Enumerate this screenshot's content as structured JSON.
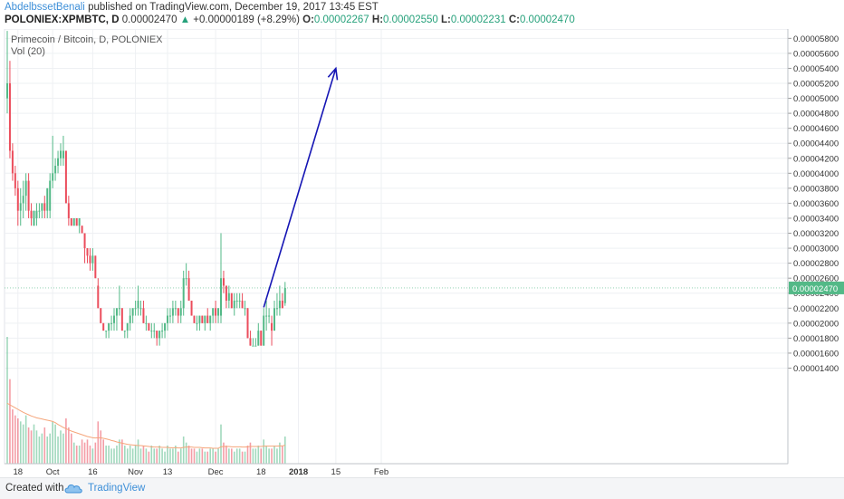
{
  "header": {
    "author": "AbdelbssetBenali",
    "published_text": "published on TradingView.com, December 19, 2017 13:45 EST",
    "symbol": "POLONIEX:XPMBTC, D",
    "last_value": "0.00002470",
    "arrow": "▲",
    "change": "+0.00000189 (+8.29%)",
    "o_label": "O:",
    "o_value": "0.00002267",
    "h_label": "H:",
    "h_value": "0.00002550",
    "l_label": "L:",
    "l_value": "0.00002231",
    "c_label": "C:",
    "c_value": "0.00002470"
  },
  "overlay": {
    "title": "Primecoin / Bitcoin, D, POLONIEX",
    "volume_label": "Vol (20)"
  },
  "footer": {
    "created_with": "Created with",
    "brand": "TradingView",
    "logo_icon": "tradingview-cloud-icon"
  },
  "colors": {
    "up": "#53b987",
    "down": "#eb4d5c",
    "grid": "#eef0f3",
    "axis_text": "#333333",
    "arrow": "#1515b4",
    "price_label_bg": "#53b987",
    "volume_ma": "#f5a57a"
  },
  "chart_data": {
    "type": "candlestick",
    "symbol": "POLONIEX:XPMBTC",
    "interval": "D",
    "last_price": 2.47e-05,
    "ylim": [
      1.25e-06,
      5.925e-05
    ],
    "y_ticks": [
      1.4e-05,
      1.6e-05,
      1.8e-05,
      2e-05,
      2.2e-05,
      2.4e-05,
      2.6e-05,
      2.8e-05,
      3e-05,
      3.2e-05,
      3.4e-05,
      3.6e-05,
      3.8e-05,
      4e-05,
      4.2e-05,
      4.4e-05,
      4.6e-05,
      4.8e-05,
      5e-05,
      5.2e-05,
      5.4e-05,
      5.6e-05,
      5.8e-05
    ],
    "y_tick_labels": [
      "0.00001400",
      "0.00001600",
      "0.00001800",
      "0.00002000",
      "0.00002200",
      "0.00002400",
      "0.00002600",
      "0.00002800",
      "0.00003000",
      "0.00003200",
      "0.00003400",
      "0.00003600",
      "0.00003800",
      "0.00004000",
      "0.00004200",
      "0.00004400",
      "0.00004600",
      "0.00004800",
      "0.00005000",
      "0.00005200",
      "0.00005400",
      "0.00005600",
      "0.00005800"
    ],
    "x_tick_labels": [
      {
        "label": "18",
        "date": "2017-09-18"
      },
      {
        "label": "Oct",
        "date": "2017-10-01"
      },
      {
        "label": "16",
        "date": "2017-10-16"
      },
      {
        "label": "Nov",
        "date": "2017-11-01"
      },
      {
        "label": "13",
        "date": "2017-11-13"
      },
      {
        "label": "Dec",
        "date": "2017-12-01"
      },
      {
        "label": "18",
        "date": "2017-12-18"
      },
      {
        "label": "2018",
        "date": "2018-01-01"
      },
      {
        "label": "15",
        "date": "2018-01-15"
      },
      {
        "label": "Feb",
        "date": "2018-02-01"
      }
    ],
    "first_date": "2017-09-14",
    "ohlc": [
      [
        5e-05,
        5.9e-05,
        4.8e-05,
        5.2e-05
      ],
      [
        5.2e-05,
        5.5e-05,
        4.2e-05,
        4.3e-05
      ],
      [
        4.3e-05,
        4.4e-05,
        3.9e-05,
        4e-05
      ],
      [
        4e-05,
        4.1e-05,
        3.7e-05,
        3.8e-05
      ],
      [
        3.8e-05,
        3.9e-05,
        3.3e-05,
        3.5e-05
      ],
      [
        3.5e-05,
        3.8e-05,
        3.3e-05,
        3.6e-05
      ],
      [
        3.6e-05,
        3.9e-05,
        3.4e-05,
        3.7e-05
      ],
      [
        3.7e-05,
        4e-05,
        3.5e-05,
        3.9e-05
      ],
      [
        3.9e-05,
        4e-05,
        3.4e-05,
        3.5e-05
      ],
      [
        3.5e-05,
        3.6e-05,
        3.3e-05,
        3.4e-05
      ],
      [
        3.3e-05,
        3.5e-05,
        3.3e-05,
        3.5e-05
      ],
      [
        3.4e-05,
        3.6e-05,
        3.3e-05,
        3.5e-05
      ],
      [
        3.5e-05,
        3.6e-05,
        3.4e-05,
        3.5e-05
      ],
      [
        3.5e-05,
        3.6e-05,
        3.4e-05,
        3.6e-05
      ],
      [
        3.6e-05,
        3.7e-05,
        3.4e-05,
        3.5e-05
      ],
      [
        3.5e-05,
        3.8e-05,
        3.4e-05,
        3.8e-05
      ],
      [
        3.5e-05,
        4e-05,
        3.4e-05,
        3.9e-05
      ],
      [
        3.9e-05,
        4.5e-05,
        3.8e-05,
        4e-05
      ],
      [
        4e-05,
        4.2e-05,
        3.9e-05,
        4.1e-05
      ],
      [
        4.1e-05,
        4.3e-05,
        4e-05,
        4.2e-05
      ],
      [
        4.2e-05,
        4.4e-05,
        4.1e-05,
        4.3e-05
      ],
      [
        4.2e-05,
        4.5e-05,
        4.1e-05,
        4.3e-05
      ],
      [
        4.3e-05,
        4.3e-05,
        3.6e-05,
        3.6e-05
      ],
      [
        3.6e-05,
        3.7e-05,
        3.3e-05,
        3.4e-05
      ],
      [
        3.4e-05,
        3.4e-05,
        3.3e-05,
        3.3e-05
      ],
      [
        3.3e-05,
        3.4e-05,
        3.3e-05,
        3.4e-05
      ],
      [
        3.4e-05,
        3.4e-05,
        3.3e-05,
        3.3e-05
      ],
      [
        3.3e-05,
        3.4e-05,
        3.2e-05,
        3.4e-05
      ],
      [
        3.3e-05,
        3.3e-05,
        3.2e-05,
        3.2e-05
      ],
      [
        3.2e-05,
        3.2e-05,
        2.8e-05,
        3e-05
      ],
      [
        3e-05,
        3e-05,
        2.8e-05,
        2.9e-05
      ],
      [
        2.9e-05,
        3e-05,
        2.7e-05,
        2.8e-05
      ],
      [
        2.8e-05,
        3e-05,
        2.7e-05,
        2.9e-05
      ],
      [
        2.9e-05,
        2.9e-05,
        2.6e-05,
        2.6e-05
      ],
      [
        2.5e-05,
        2.6e-05,
        2.2e-05,
        2.2e-05
      ],
      [
        2.2e-05,
        2.2e-05,
        2e-05,
        2e-05
      ],
      [
        2e-05,
        2e-05,
        1.9e-05,
        1.9e-05
      ],
      [
        1.9e-05,
        1.9e-05,
        1.8e-05,
        1.9e-05
      ],
      [
        1.9e-05,
        2e-05,
        1.8e-05,
        2e-05
      ],
      [
        2e-05,
        2.1e-05,
        1.9e-05,
        2e-05
      ],
      [
        2e-05,
        2.2e-05,
        1.9e-05,
        2.1e-05
      ],
      [
        2.1e-05,
        2.2e-05,
        1.9e-05,
        2.2e-05
      ],
      [
        2.2e-05,
        2.5e-05,
        2.1e-05,
        2.2e-05
      ],
      [
        2.2e-05,
        2.2e-05,
        1.9e-05,
        1.9e-05
      ],
      [
        1.9e-05,
        1.9e-05,
        1.8e-05,
        1.9e-05
      ],
      [
        1.9e-05,
        2e-05,
        1.8e-05,
        2e-05
      ],
      [
        2e-05,
        2.2e-05,
        1.9e-05,
        2.1e-05
      ],
      [
        2.1e-05,
        2.2e-05,
        2e-05,
        2.2e-05
      ],
      [
        2.2e-05,
        2.3e-05,
        2.1e-05,
        2.2e-05
      ],
      [
        2.2e-05,
        2.5e-05,
        2.1e-05,
        2.3e-05
      ],
      [
        2.2e-05,
        2.3e-05,
        2.1e-05,
        2.2e-05
      ],
      [
        2.2e-05,
        2.3e-05,
        2e-05,
        2e-05
      ],
      [
        2e-05,
        2.1e-05,
        1.9e-05,
        2e-05
      ],
      [
        2e-05,
        2e-05,
        1.9e-05,
        1.9e-05
      ],
      [
        1.9e-05,
        2e-05,
        1.8e-05,
        1.9e-05
      ],
      [
        1.9e-05,
        2e-05,
        1.8e-05,
        1.9e-05
      ],
      [
        1.9e-05,
        1.9e-05,
        1.7e-05,
        1.8e-05
      ],
      [
        1.8e-05,
        1.9e-05,
        1.7e-05,
        1.9e-05
      ],
      [
        1.9e-05,
        2e-05,
        1.8e-05,
        1.9e-05
      ],
      [
        1.9e-05,
        2e-05,
        1.8e-05,
        2e-05
      ],
      [
        2e-05,
        2.2e-05,
        1.9e-05,
        2.1e-05
      ],
      [
        2.1e-05,
        2.2e-05,
        2e-05,
        2.1e-05
      ],
      [
        2.1e-05,
        2.3e-05,
        2e-05,
        2.2e-05
      ],
      [
        2.2e-05,
        2.3e-05,
        2.1e-05,
        2.2e-05
      ],
      [
        2.2e-05,
        2.2e-05,
        2e-05,
        2.1e-05
      ],
      [
        2.1e-05,
        2.3e-05,
        2e-05,
        2.2e-05
      ],
      [
        2.2e-05,
        2.7e-05,
        2.1e-05,
        2.6e-05
      ],
      [
        2.6e-05,
        2.8e-05,
        2.5e-05,
        2.6e-05
      ],
      [
        2.6e-05,
        2.7e-05,
        2.3e-05,
        2.3e-05
      ],
      [
        2.3e-05,
        2.3e-05,
        2.1e-05,
        2.1e-05
      ],
      [
        2.1e-05,
        2.1e-05,
        2e-05,
        2e-05
      ],
      [
        2e-05,
        2.1e-05,
        1.9e-05,
        2e-05
      ],
      [
        2e-05,
        2.1e-05,
        1.9e-05,
        2.1e-05
      ],
      [
        2.1e-05,
        2.1e-05,
        2e-05,
        2e-05
      ],
      [
        2e-05,
        2.1e-05,
        1.9e-05,
        2.1e-05
      ],
      [
        2.1e-05,
        2.2e-05,
        2e-05,
        2e-05
      ],
      [
        2e-05,
        2.1e-05,
        1.9e-05,
        2.1e-05
      ],
      [
        2.1e-05,
        2.2e-05,
        2e-05,
        2.2e-05
      ],
      [
        2.2e-05,
        2.3e-05,
        2e-05,
        2.1e-05
      ],
      [
        2.1e-05,
        2.2e-05,
        2e-05,
        2.2e-05
      ],
      [
        2.1e-05,
        3.2e-05,
        2e-05,
        2.6e-05
      ],
      [
        2.6e-05,
        2.7e-05,
        2.4e-05,
        2.5e-05
      ],
      [
        2.5e-05,
        2.5e-05,
        2.2e-05,
        2.3e-05
      ],
      [
        2.3e-05,
        2.5e-05,
        2.2e-05,
        2.4e-05
      ],
      [
        2.4e-05,
        2.4e-05,
        2.2e-05,
        2.2e-05
      ],
      [
        2.2e-05,
        2.4e-05,
        2.1e-05,
        2.3e-05
      ],
      [
        2.3e-05,
        2.4e-05,
        2.2e-05,
        2.3e-05
      ],
      [
        2.3e-05,
        2.4e-05,
        2.2e-05,
        2.3e-05
      ],
      [
        2.3e-05,
        2.4e-05,
        2.2e-05,
        2.2e-05
      ],
      [
        2.2e-05,
        2.3e-05,
        2.1e-05,
        2.2e-05
      ],
      [
        2.2e-05,
        2.2e-05,
        1.8e-05,
        1.8e-05
      ],
      [
        1.8e-05,
        1.9e-05,
        1.7e-05,
        1.7e-05
      ],
      [
        1.7e-05,
        1.8e-05,
        1.7e-05,
        1.7e-05
      ],
      [
        1.7e-05,
        1.8e-05,
        1.7e-05,
        1.7e-05
      ],
      [
        1.7e-05,
        2e-05,
        1.7e-05,
        1.9e-05
      ],
      [
        1.9e-05,
        1.9e-05,
        1.7e-05,
        1.7e-05
      ],
      [
        1.7e-05,
        2.2e-05,
        1.7e-05,
        2.1e-05
      ],
      [
        2.1e-05,
        2.3e-05,
        1.9e-05,
        2.1e-05
      ],
      [
        2.1e-05,
        2.2e-05,
        2e-05,
        2.1e-05
      ],
      [
        2e-05,
        2.1e-05,
        1.7e-05,
        1.9e-05
      ],
      [
        1.9e-05,
        2.3e-05,
        1.9e-05,
        2.2e-05
      ],
      [
        2.2e-05,
        2.4e-05,
        2.1e-05,
        2.2e-05
      ],
      [
        2.2e-05,
        2.5e-05,
        2.1e-05,
        2.3e-05
      ],
      [
        2.3e-05,
        2.4e-05,
        2.2e-05,
        2.2e-05
      ],
      [
        2.267e-05,
        2.55e-05,
        2.231e-05,
        2.47e-05
      ]
    ],
    "volume": [
      4.2,
      2.8,
      1.8,
      1.6,
      1.5,
      1.4,
      1.3,
      1.6,
      1.2,
      1.1,
      1.3,
      1.1,
      0.9,
      1.0,
      1.2,
      0.9,
      1.0,
      1.4,
      1.3,
      0.9,
      1.1,
      1.0,
      1.5,
      1.2,
      1.0,
      0.7,
      0.6,
      0.6,
      0.8,
      0.7,
      0.8,
      0.6,
      0.5,
      0.7,
      1.4,
      1.1,
      0.8,
      0.6,
      0.6,
      0.5,
      0.5,
      0.6,
      0.8,
      0.8,
      0.6,
      0.5,
      0.6,
      0.5,
      0.6,
      0.8,
      0.5,
      0.6,
      0.5,
      0.4,
      0.6,
      0.5,
      0.5,
      0.6,
      0.5,
      0.4,
      0.6,
      0.5,
      0.5,
      0.6,
      0.4,
      0.5,
      0.9,
      0.7,
      0.6,
      0.5,
      0.5,
      0.4,
      0.5,
      0.5,
      0.4,
      0.4,
      0.5,
      0.5,
      0.4,
      0.5,
      1.3,
      0.7,
      0.6,
      0.5,
      0.5,
      0.4,
      0.5,
      0.5,
      0.4,
      0.4,
      0.6,
      0.7,
      0.5,
      0.5,
      0.6,
      0.5,
      0.8,
      0.6,
      0.5,
      0.5,
      0.6,
      0.5,
      0.7,
      0.6,
      0.9
    ],
    "volume_ma20": [
      2.0,
      1.95,
      1.9,
      1.85,
      1.8,
      1.75,
      1.7,
      1.66,
      1.62,
      1.58,
      1.55,
      1.52,
      1.5,
      1.48,
      1.46,
      1.44,
      1.42,
      1.4,
      1.36,
      1.3,
      1.25,
      1.2,
      1.16,
      1.12,
      1.08,
      1.05,
      1.02,
      0.99,
      0.96,
      0.93,
      0.9,
      0.88,
      0.86,
      0.85,
      0.86,
      0.86,
      0.84,
      0.82,
      0.8,
      0.77,
      0.75,
      0.72,
      0.7,
      0.68,
      0.66,
      0.64,
      0.63,
      0.62,
      0.61,
      0.6,
      0.6,
      0.59,
      0.58,
      0.57,
      0.56,
      0.55,
      0.55,
      0.55,
      0.54,
      0.54,
      0.54,
      0.53,
      0.53,
      0.53,
      0.52,
      0.52,
      0.54,
      0.55,
      0.55,
      0.55,
      0.54,
      0.54,
      0.54,
      0.53,
      0.52,
      0.52,
      0.52,
      0.51,
      0.51,
      0.51,
      0.56,
      0.57,
      0.57,
      0.57,
      0.56,
      0.56,
      0.56,
      0.56,
      0.55,
      0.55,
      0.56,
      0.57,
      0.57,
      0.57,
      0.57,
      0.57,
      0.58,
      0.58,
      0.58,
      0.58,
      0.58,
      0.58,
      0.59,
      0.59,
      0.61
    ],
    "projection": {
      "from": {
        "date": "2017-12-19",
        "price": 2.21e-05
      },
      "to": {
        "date": "2018-01-15",
        "price": 5.4e-05
      }
    }
  }
}
